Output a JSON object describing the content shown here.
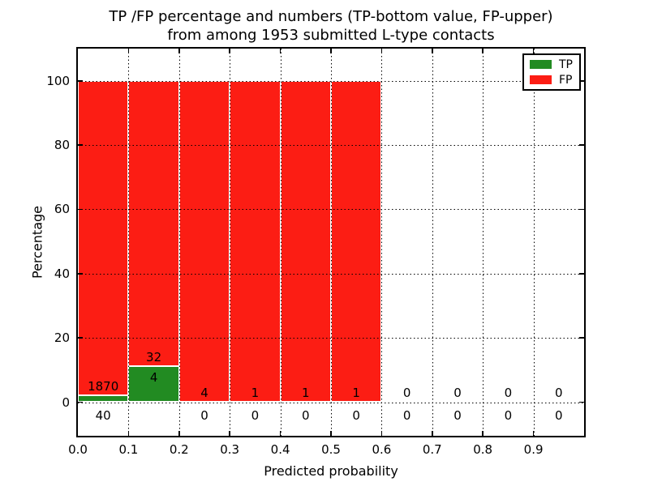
{
  "title": {
    "line1": "TP /FP percentage and numbers (TP-bottom value, FP-upper)",
    "line2": "from among 1953 submitted L-type contacts"
  },
  "y_axis": {
    "label": "Percentage",
    "tick_labels": [
      "0",
      "20",
      "40",
      "60",
      "80",
      "100"
    ],
    "tick_values": [
      0,
      20,
      40,
      60,
      80,
      100
    ]
  },
  "x_axis": {
    "label": "Predicted probability",
    "tick_labels": [
      "0.0",
      "0.1",
      "0.2",
      "0.3",
      "0.4",
      "0.5",
      "0.6",
      "0.7",
      "0.8",
      "0.9"
    ],
    "tick_values": [
      0.0,
      0.1,
      0.2,
      0.3,
      0.4,
      0.5,
      0.6,
      0.7,
      0.8,
      0.9
    ]
  },
  "legend": {
    "position": "upper right",
    "items": [
      {
        "label": "TP",
        "color": "#228b22"
      },
      {
        "label": "FP",
        "color": "#fc1d14"
      }
    ]
  },
  "colors": {
    "tp_green": "#228b22",
    "fp_red": "#fc1d14",
    "bar_edge": "#ffffff",
    "grid": "#000000",
    "background": "#ffffff",
    "text": "#000000"
  },
  "chart_data": {
    "type": "bar",
    "stacked": true,
    "normalized": "each bin stacked to 100%",
    "bin_width": 0.1,
    "bin_starts": [
      0.0,
      0.1,
      0.2,
      0.3,
      0.4,
      0.5,
      0.6,
      0.7,
      0.8,
      0.9
    ],
    "categories": [
      "0.0-0.1",
      "0.1-0.2",
      "0.2-0.3",
      "0.3-0.4",
      "0.4-0.5",
      "0.5-0.6",
      "0.6-0.7",
      "0.7-0.8",
      "0.8-0.9",
      "0.9-1.0"
    ],
    "series": [
      {
        "name": "TP",
        "color": "#228b22",
        "counts": [
          40,
          4,
          0,
          0,
          0,
          0,
          0,
          0,
          0,
          0
        ]
      },
      {
        "name": "FP",
        "color": "#fc1d14",
        "counts": [
          1870,
          32,
          4,
          1,
          1,
          1,
          0,
          0,
          0,
          0
        ]
      }
    ],
    "bar_label_upper_fp": [
      "1870",
      "32",
      "4",
      "1",
      "1",
      "1",
      "0",
      "0",
      "0",
      "0"
    ],
    "bar_label_lower_tp": [
      "40",
      "4",
      "0",
      "0",
      "0",
      "0",
      "0",
      "0",
      "0",
      "0"
    ],
    "total_submitted": 1953,
    "title": "TP /FP percentage and numbers (TP-bottom value, FP-upper) from among 1953 submitted L-type contacts",
    "xlabel": "Predicted probability",
    "ylabel": "Percentage",
    "xlim": [
      0.0,
      1.0
    ],
    "ylim": [
      -10.5,
      110
    ],
    "grid": "dotted",
    "legend_position": "upper right"
  }
}
